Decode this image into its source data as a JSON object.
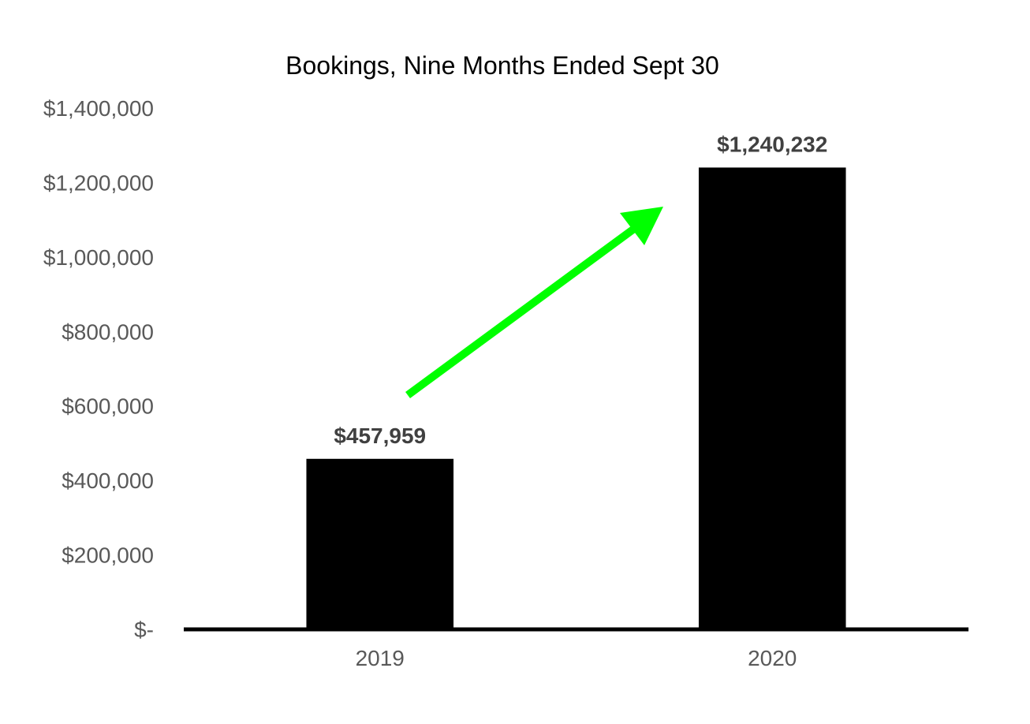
{
  "chart_data": {
    "type": "bar",
    "title": "Bookings, Nine Months Ended Sept 30",
    "xlabel": "",
    "ylabel": "",
    "categories": [
      "2019",
      "2020"
    ],
    "values": [
      457959,
      1240232
    ],
    "data_labels": [
      "$457,959",
      "$1,240,232"
    ],
    "ylim": [
      0,
      1400000
    ],
    "y_ticks": [
      0,
      200000,
      400000,
      600000,
      800000,
      1000000,
      1200000,
      1400000
    ],
    "y_tick_labels": [
      "$-",
      "$200,000",
      "$400,000",
      "$600,000",
      "$800,000",
      "$1,000,000",
      "$1,200,000",
      "$1,400,000"
    ],
    "grid": false,
    "legend": "none",
    "annotation": "upward-trend-arrow",
    "colors": {
      "bar": "#000000",
      "arrow": "#00ff00",
      "axis": "#000000",
      "tick_text": "#595959",
      "data_label": "#404040",
      "title": "#000000"
    }
  }
}
